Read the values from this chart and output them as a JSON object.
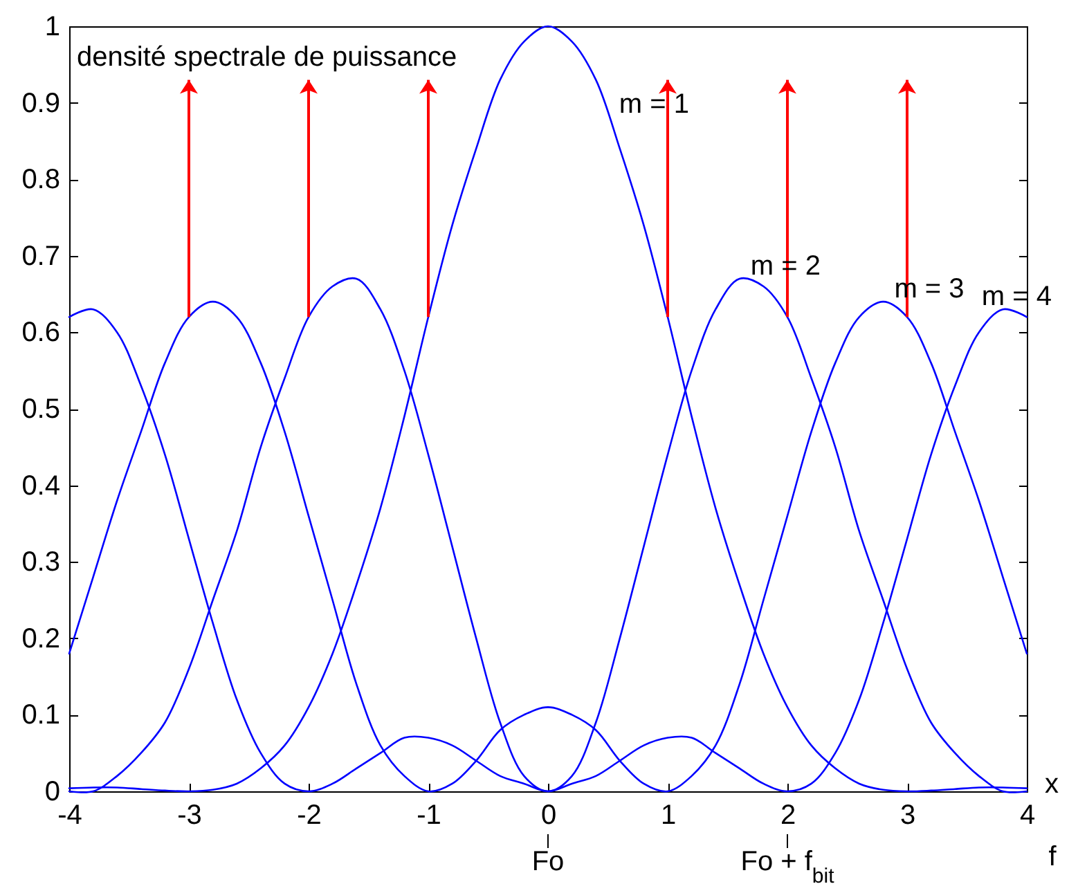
{
  "chart_data": {
    "type": "line",
    "xlabel": "f",
    "ylabel": "densité spectrale de puissance",
    "x": [
      -4,
      -3.8,
      -3.6,
      -3.4,
      -3.2,
      -3,
      -2.8,
      -2.6,
      -2.4,
      -2.2,
      -2,
      -1.8,
      -1.6,
      -1.4,
      -1.2,
      -1,
      -0.8,
      -0.6,
      -0.4,
      -0.2,
      0,
      0.2,
      0.4,
      0.6,
      0.8,
      1,
      1.2,
      1.4,
      1.6,
      1.8,
      2,
      2.2,
      2.4,
      2.6,
      2.8,
      3,
      3.2,
      3.4,
      3.6,
      3.8,
      4
    ],
    "series": [
      {
        "name": "m = 1",
        "color": "#0000ff",
        "values": [
          0.004,
          0.005,
          0.005,
          0.003,
          0.001,
          0,
          0.002,
          0.01,
          0.03,
          0.06,
          0.11,
          0.18,
          0.27,
          0.37,
          0.49,
          0.62,
          0.74,
          0.84,
          0.93,
          0.98,
          1,
          0.98,
          0.93,
          0.84,
          0.74,
          0.62,
          0.49,
          0.37,
          0.27,
          0.18,
          0.11,
          0.06,
          0.03,
          0.01,
          0.002,
          0,
          0.001,
          0.003,
          0.005,
          0.005,
          0.004
        ]
      },
      {
        "name": "m = 2",
        "color": "#0000ff",
        "values": [
          0,
          0,
          0.02,
          0.05,
          0.09,
          0.16,
          0.25,
          0.34,
          0.45,
          0.54,
          0.62,
          0.66,
          0.67,
          0.63,
          0.55,
          0.44,
          0.32,
          0.2,
          0.09,
          0.02,
          0,
          0.02,
          0.09,
          0.2,
          0.32,
          0.44,
          0.55,
          0.63,
          0.67,
          0.66,
          0.62,
          0.54,
          0.45,
          0.34,
          0.25,
          0.16,
          0.09,
          0.05,
          0.02,
          0,
          0
        ]
      },
      {
        "name": "m = 3",
        "color": "#0000ff",
        "values": [
          0.18,
          0.28,
          0.38,
          0.47,
          0.56,
          0.62,
          0.64,
          0.62,
          0.56,
          0.47,
          0.36,
          0.25,
          0.14,
          0.06,
          0.02,
          0,
          0.01,
          0.04,
          0.08,
          0.1,
          0.11,
          0.1,
          0.08,
          0.04,
          0.01,
          0,
          0.02,
          0.06,
          0.14,
          0.25,
          0.36,
          0.47,
          0.56,
          0.62,
          0.64,
          0.62,
          0.56,
          0.47,
          0.38,
          0.28,
          0.18
        ]
      },
      {
        "name": "m = 4",
        "color": "#0000ff",
        "values": [
          0.62,
          0.63,
          0.6,
          0.53,
          0.44,
          0.33,
          0.22,
          0.12,
          0.05,
          0.01,
          0,
          0.01,
          0.03,
          0.05,
          0.07,
          0.07,
          0.06,
          0.04,
          0.02,
          0.01,
          0,
          0.01,
          0.02,
          0.04,
          0.06,
          0.07,
          0.07,
          0.05,
          0.03,
          0.01,
          0,
          0.01,
          0.05,
          0.12,
          0.22,
          0.33,
          0.44,
          0.53,
          0.6,
          0.63,
          0.62
        ]
      },
      {
        "type": "bar",
        "color": "#ff0000",
        "x": [
          -3,
          -2,
          -1,
          1,
          2,
          3
        ],
        "base": [
          0.62,
          0.62,
          0.62,
          0.62,
          0.62,
          0.62
        ],
        "values": [
          0.31,
          0.31,
          0.31,
          0.31,
          0.31,
          0.31
        ]
      }
    ],
    "xlim": [
      -4,
      4
    ],
    "xticks": [
      -4,
      -3,
      -2,
      -1,
      0,
      1,
      2,
      3,
      4
    ],
    "ylim": [
      0,
      1
    ],
    "yticks": [
      0,
      0.1,
      0.2,
      0.3,
      0.4,
      0.5,
      0.6,
      0.7,
      0.8,
      0.9,
      1
    ],
    "annotations": [
      "x",
      {
        "text": "Fo",
        "x": 0
      },
      {
        "text": "Fo + f$_{bit}$",
        "x": 2
      }
    ]
  }
}
